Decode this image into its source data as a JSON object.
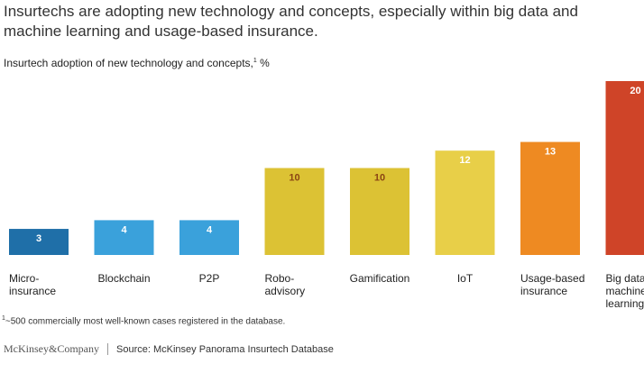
{
  "header": {
    "title": "Insurtechs are adopting new technology and concepts, especially within big data and machine learning and usage-based insurance.",
    "subtitle": "Insurtech adoption of new technology and concepts,",
    "subtitle_sup": "1",
    "subtitle_unit": " %"
  },
  "chart_data": {
    "type": "bar",
    "categories": [
      "Micro-\ninsurance",
      "Blockchain",
      "P2P",
      "Robo-\nadvisory",
      "Gamification",
      "IoT",
      "Usage-based\ninsurance",
      "Big data/\nmachine\nlearning"
    ],
    "values": [
      3,
      4,
      4,
      10,
      10,
      12,
      13,
      20
    ],
    "colors": [
      "#1f6fa8",
      "#3aa1db",
      "#3aa1db",
      "#dcc234",
      "#dcc234",
      "#e8cf48",
      "#ee8a22",
      "#cf4428"
    ],
    "label_colors": [
      "#ffffff",
      "#ffffff",
      "#ffffff",
      "#8b4513",
      "#8b4513",
      "#ffffff",
      "#ffffff",
      "#ffffff"
    ],
    "ylim": [
      0,
      20
    ],
    "grid": false,
    "legend": "none"
  },
  "footnote": {
    "sup": "1",
    "text": "~500 commercially most well-known cases registered in the database."
  },
  "footer": {
    "brand": "McKinsey&Company",
    "source": "Source: McKinsey Panorama Insurtech Database"
  }
}
